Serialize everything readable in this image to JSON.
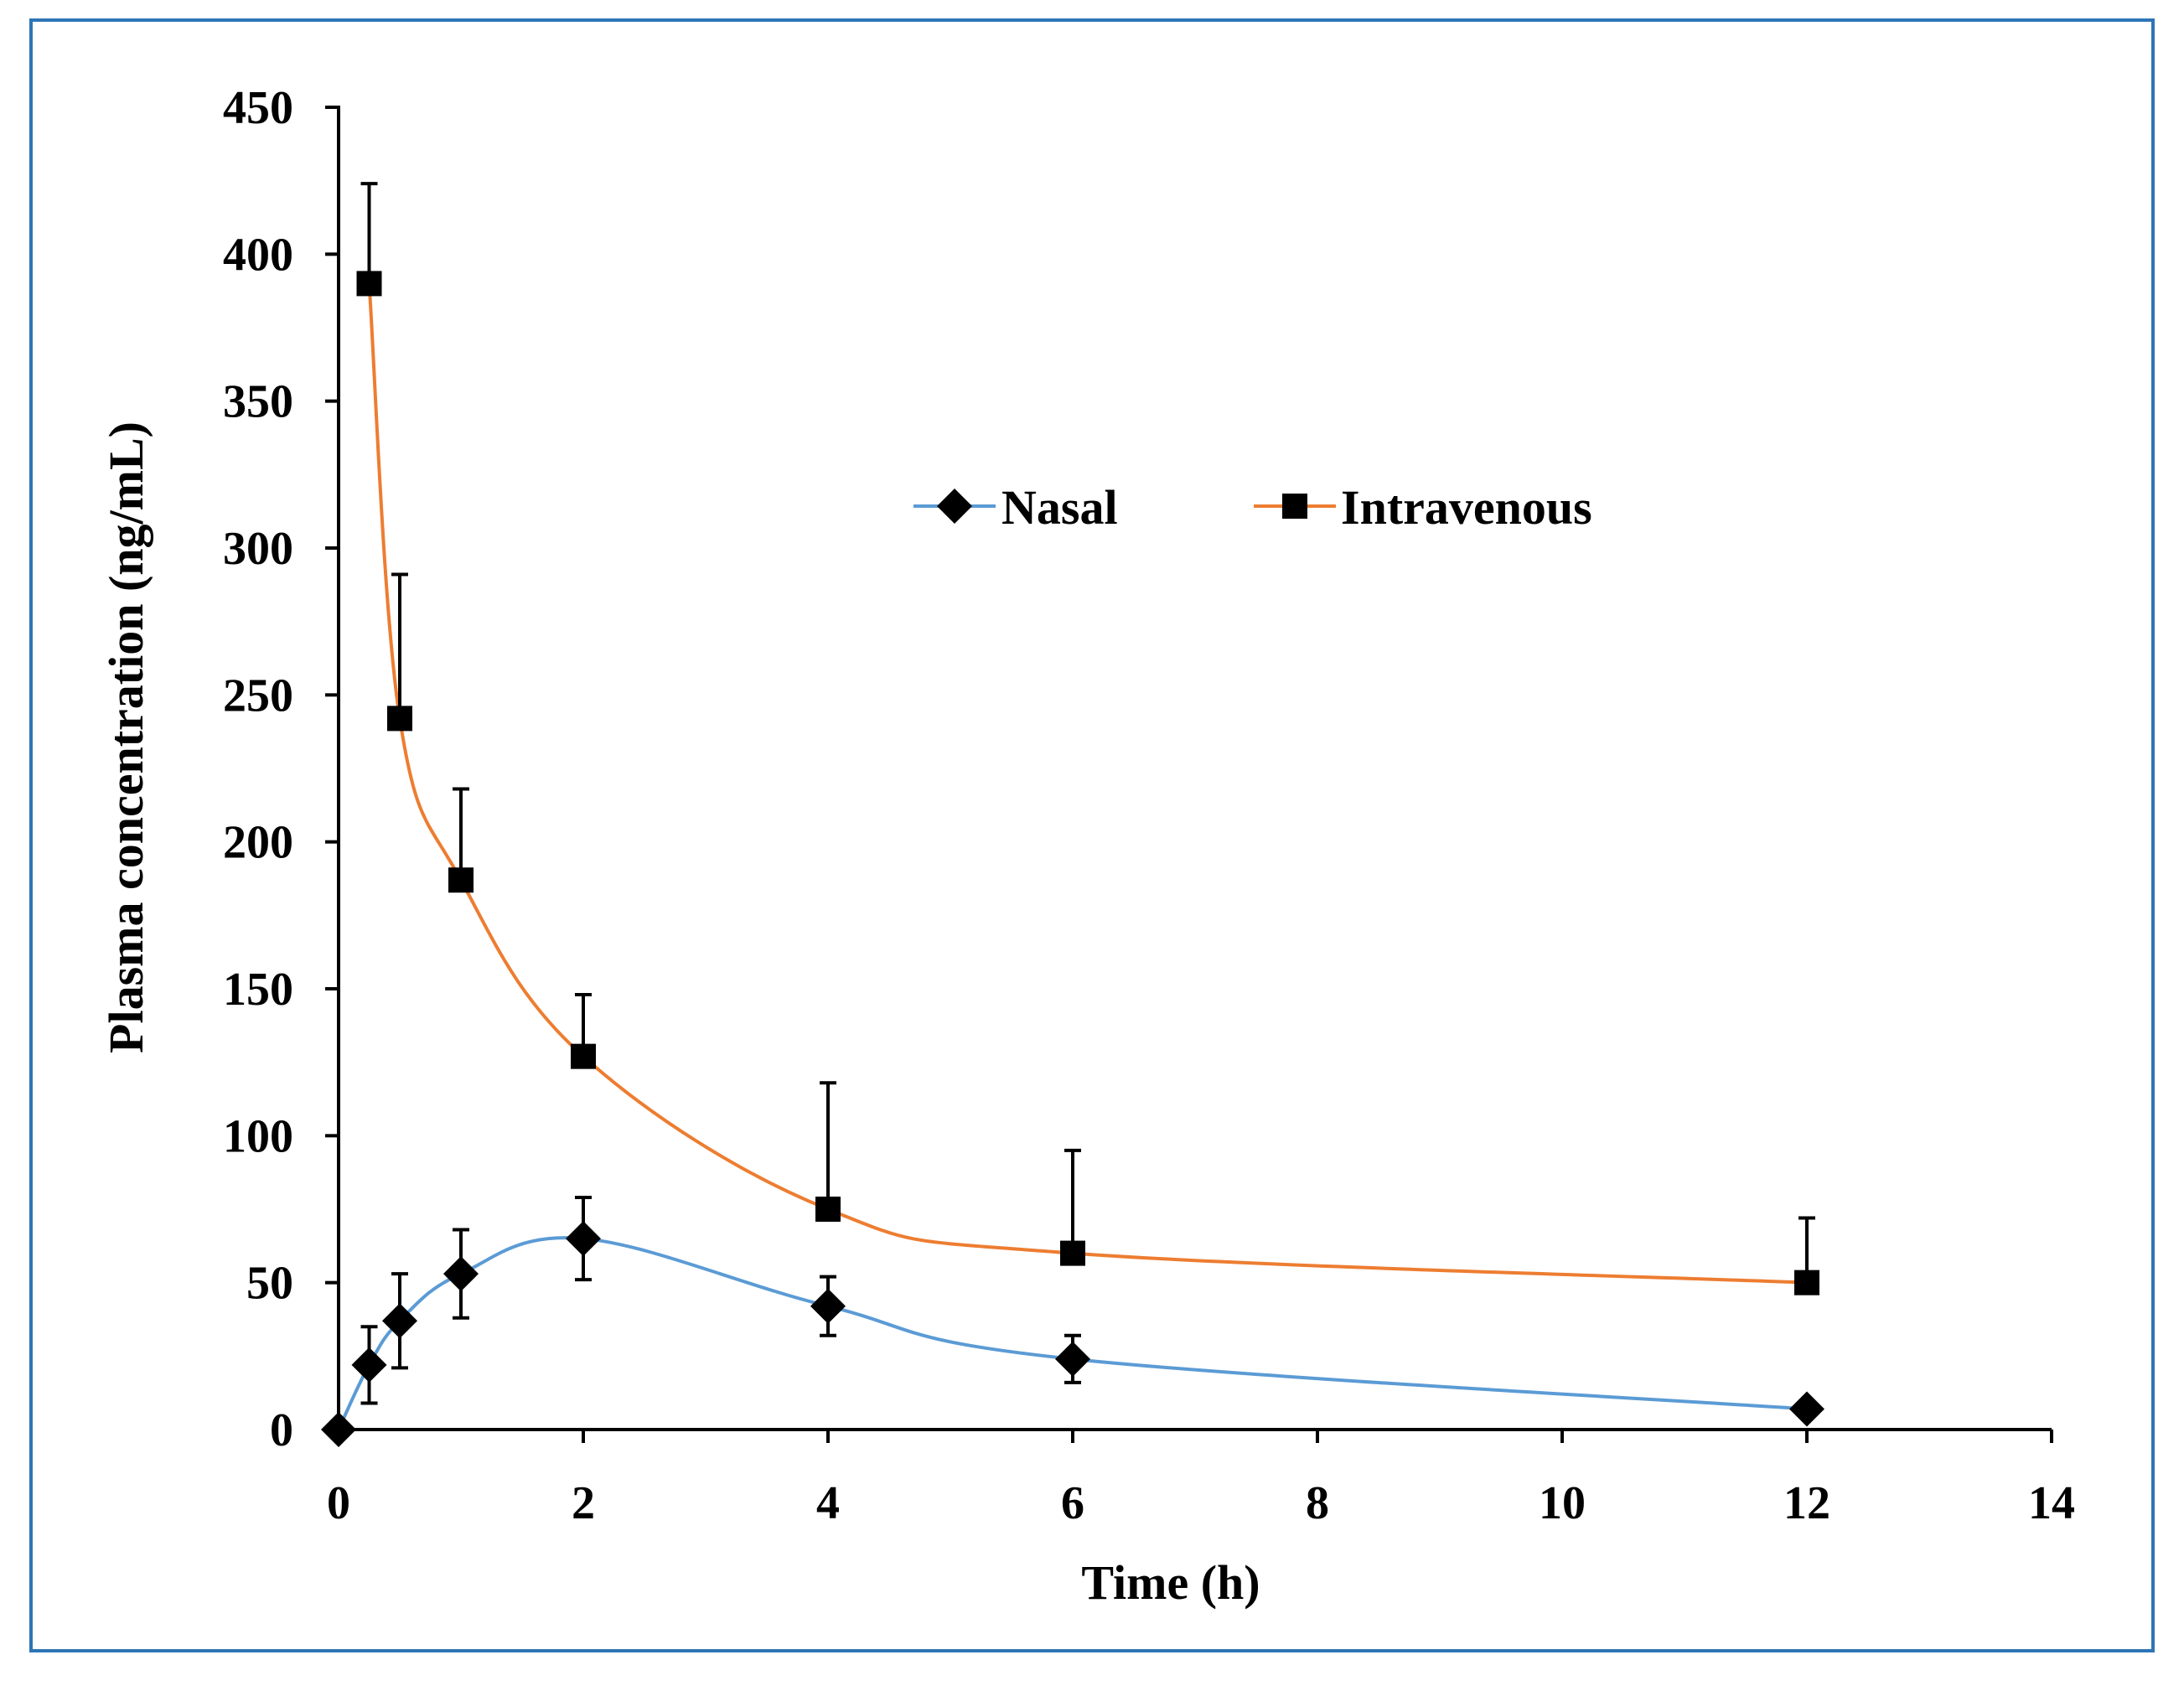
{
  "chart_data": {
    "type": "line",
    "title": "",
    "xlabel": "Time (h)",
    "ylabel": "Plasma concentration (ng/mL)",
    "xlim": [
      0,
      14
    ],
    "ylim": [
      0,
      450
    ],
    "xticks": [
      0,
      2,
      4,
      6,
      8,
      10,
      12,
      14
    ],
    "yticks": [
      0,
      50,
      100,
      150,
      200,
      250,
      300,
      350,
      400,
      450
    ],
    "grid": false,
    "legend_position": "upper-center",
    "series": [
      {
        "name": "Nasal",
        "color": "#5b9bd5",
        "marker": "diamond",
        "x": [
          0,
          0.25,
          0.5,
          1,
          2,
          4,
          6,
          12
        ],
        "values": [
          0,
          22,
          37,
          53,
          65,
          42,
          24,
          7
        ],
        "error": [
          0,
          13,
          16,
          15,
          14,
          10,
          8,
          0
        ]
      },
      {
        "name": "Intravenous",
        "color": "#ed7d31",
        "marker": "square",
        "x": [
          0.25,
          0.5,
          1,
          2,
          4,
          6,
          12
        ],
        "values": [
          390,
          242,
          187,
          127,
          75,
          60,
          50
        ],
        "error": [
          34,
          49,
          31,
          21,
          43,
          35,
          22
        ]
      }
    ],
    "frame_color": "#2e75b6"
  }
}
